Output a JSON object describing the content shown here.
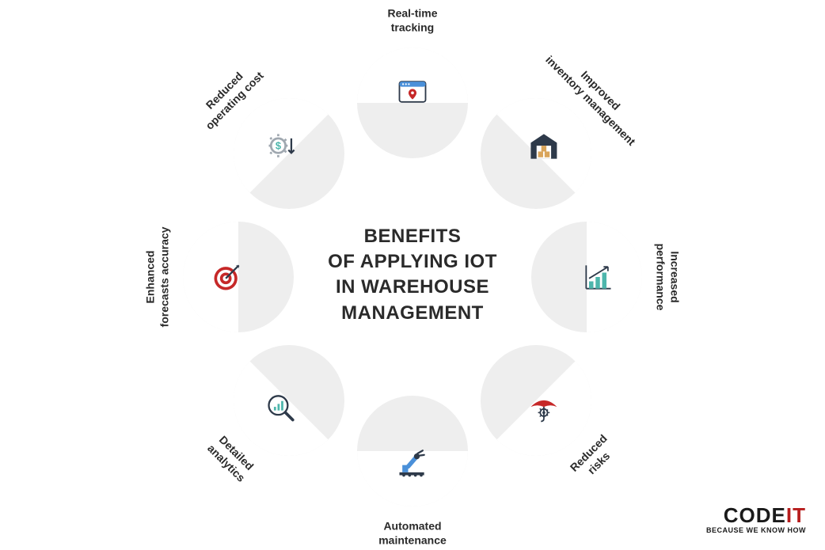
{
  "diagram": {
    "type": "infographic",
    "center_title": "BENEFITS OF APPLYING IOT IN WAREHOUSE MANAGEMENT",
    "center_fontsize": 24,
    "background_color": "#ffffff",
    "petal_color": "#eeeeee",
    "text_color": "#2a2a2a",
    "radius": 220,
    "petal_size": 140,
    "items": [
      {
        "angle": -90,
        "label": "Real-time tracking",
        "icon": "location-map",
        "label_pos": "top"
      },
      {
        "angle": -45,
        "label": "Improved inventory management",
        "icon": "warehouse",
        "label_pos": "tr"
      },
      {
        "angle": 0,
        "label": "Increased performance",
        "icon": "chart-up",
        "label_pos": "right"
      },
      {
        "angle": 45,
        "label": "Reduced risks",
        "icon": "umbrella",
        "label_pos": "br"
      },
      {
        "angle": 90,
        "label": "Automated maintenance",
        "icon": "robot-arm",
        "label_pos": "bottom"
      },
      {
        "angle": 135,
        "label": "Detailed analytics",
        "icon": "magnify-chart",
        "label_pos": "bl"
      },
      {
        "angle": 180,
        "label": "Enhanced forecasts accuracy",
        "icon": "target",
        "label_pos": "left"
      },
      {
        "angle": 225,
        "label": "Reduced operating cost",
        "icon": "dollar-gear",
        "label_pos": "tl"
      }
    ],
    "icon_colors": {
      "red": "#c62828",
      "dark": "#2e3a4a",
      "teal": "#4db6ac",
      "blue": "#4a90d9",
      "gray": "#a0a8b0",
      "box": "#d9a55b"
    }
  },
  "logo": {
    "code": "CODE",
    "it": "IT",
    "tagline": "BECAUSE WE KNOW HOW",
    "code_color": "#1a1a1a",
    "it_color": "#b71c1c"
  }
}
